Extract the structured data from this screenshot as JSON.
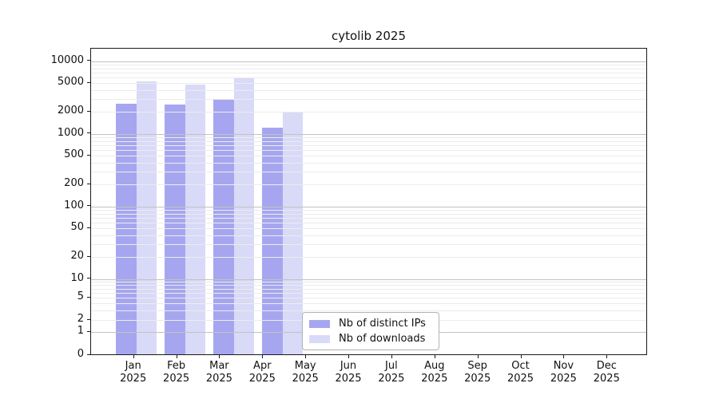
{
  "title": "cytolib 2025",
  "legend": {
    "items": [
      {
        "label": "Nb of distinct IPs",
        "color": "#a6a6f0"
      },
      {
        "label": "Nb of downloads",
        "color": "#d9d9f8"
      }
    ]
  },
  "chart_data": {
    "type": "bar",
    "title": "cytolib 2025",
    "categories": [
      "Jan 2025",
      "Feb 2025",
      "Mar 2025",
      "Apr 2025",
      "May 2025",
      "Jun 2025",
      "Jul 2025",
      "Aug 2025",
      "Sep 2025",
      "Oct 2025",
      "Nov 2025",
      "Dec 2025"
    ],
    "series": [
      {
        "name": "Nb of distinct IPs",
        "color": "#a6a6f0",
        "values": [
          2500,
          2400,
          2800,
          1150,
          null,
          null,
          null,
          null,
          null,
          null,
          null,
          null
        ]
      },
      {
        "name": "Nb of downloads",
        "color": "#d9d9f8",
        "values": [
          5000,
          4500,
          5500,
          1900,
          null,
          null,
          null,
          null,
          null,
          null,
          null,
          null
        ]
      }
    ],
    "xlabel": "",
    "ylabel": "",
    "yscale": "log-like (compressed to 0 baseline)",
    "yticks": [
      10000,
      5000,
      2000,
      1000,
      500,
      200,
      100,
      50,
      20,
      10,
      5,
      2,
      1,
      0
    ],
    "ylim": [
      0,
      14000
    ],
    "grid": "on",
    "gridline_major_values": [
      1,
      10,
      100,
      1000,
      10000
    ],
    "gridline_minor_pattern": "2-9 per decade",
    "legend_position": "lower center inside axes",
    "colors": {
      "major_grid": "#c2c2c2",
      "minor_grid": "#ececec",
      "spine": "#1a1a1a"
    }
  }
}
